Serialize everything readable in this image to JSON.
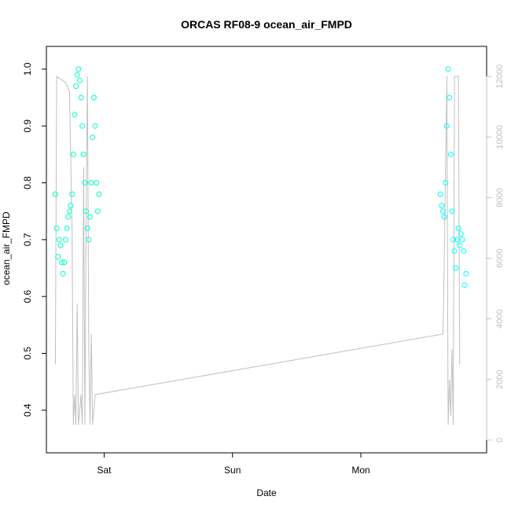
{
  "chart_data": {
    "type": "scatter",
    "title": "ORCAS RF08-9 ocean_air_FMPD",
    "xlabel": "Date",
    "ylabel": "ocean_air_FMPD",
    "x_tick_labels": [
      "Sat",
      "Sun",
      "Mon"
    ],
    "x_tick_positions": [
      1.0,
      2.0,
      3.0
    ],
    "xlim": [
      0.55,
      3.98
    ],
    "ylim": [
      0.325,
      1.04
    ],
    "y_ticks": [
      0.4,
      0.5,
      0.6,
      0.7,
      0.8,
      0.9,
      1.0
    ],
    "y_tick_labels": [
      "0.4",
      "0.5",
      "0.6",
      "0.7",
      "0.8",
      "0.9",
      "1.0"
    ],
    "y2_ticks": [
      0,
      2000,
      4000,
      6000,
      8000,
      10000,
      12000
    ],
    "y2_tick_labels": [
      "0",
      "2000",
      "4000",
      "6000",
      "8000",
      "10000",
      "12000"
    ],
    "y2lim": [
      -420,
      12990
    ],
    "colors": {
      "series_1": "#00ffc8",
      "series_2": "#00ffff",
      "altitude_line": "#c0c0c0"
    },
    "series": [
      {
        "segment": "first",
        "x_range": [
          0.62,
          0.96
        ],
        "y_pattern": [
          [
            0.62,
            0.78
          ],
          [
            0.63,
            0.72
          ],
          [
            0.64,
            0.67
          ],
          [
            0.65,
            0.7
          ],
          [
            0.66,
            0.69
          ],
          [
            0.67,
            0.66
          ],
          [
            0.68,
            0.64
          ],
          [
            0.69,
            0.66
          ],
          [
            0.7,
            0.7
          ],
          [
            0.71,
            0.72
          ],
          [
            0.72,
            0.74
          ],
          [
            0.73,
            0.75
          ],
          [
            0.74,
            0.76
          ],
          [
            0.75,
            0.78
          ],
          [
            0.76,
            0.85
          ],
          [
            0.77,
            0.92
          ],
          [
            0.78,
            0.97
          ],
          [
            0.79,
            0.99
          ],
          [
            0.8,
            1.0
          ],
          [
            0.81,
            0.98
          ],
          [
            0.82,
            0.95
          ],
          [
            0.83,
            0.9
          ],
          [
            0.84,
            0.85
          ],
          [
            0.85,
            0.8
          ],
          [
            0.86,
            0.75
          ],
          [
            0.87,
            0.72
          ],
          [
            0.88,
            0.7
          ],
          [
            0.89,
            0.74
          ],
          [
            0.9,
            0.8
          ],
          [
            0.91,
            0.88
          ],
          [
            0.92,
            0.95
          ],
          [
            0.93,
            0.9
          ],
          [
            0.94,
            0.8
          ],
          [
            0.95,
            0.75
          ],
          [
            0.96,
            0.78
          ]
        ]
      },
      {
        "segment": "second",
        "x_range": [
          3.62,
          3.82
        ],
        "y_pattern": [
          [
            3.62,
            0.78
          ],
          [
            3.63,
            0.76
          ],
          [
            3.64,
            0.75
          ],
          [
            3.65,
            0.74
          ],
          [
            3.66,
            0.8
          ],
          [
            3.67,
            0.9
          ],
          [
            3.68,
            1.0
          ],
          [
            3.69,
            0.95
          ],
          [
            3.7,
            0.85
          ],
          [
            3.71,
            0.75
          ],
          [
            3.72,
            0.7
          ],
          [
            3.73,
            0.68
          ],
          [
            3.74,
            0.65
          ],
          [
            3.75,
            0.7
          ],
          [
            3.76,
            0.72
          ],
          [
            3.77,
            0.69
          ],
          [
            3.78,
            0.71
          ],
          [
            3.79,
            0.7
          ],
          [
            3.8,
            0.68
          ],
          [
            3.81,
            0.62
          ],
          [
            3.82,
            0.64
          ]
        ]
      }
    ],
    "altitude_line": [
      [
        0.62,
        2500
      ],
      [
        0.63,
        12000
      ],
      [
        0.7,
        11800
      ],
      [
        0.73,
        11500
      ],
      [
        0.75,
        7000
      ],
      [
        0.76,
        500
      ],
      [
        0.77,
        1500
      ],
      [
        0.78,
        500
      ],
      [
        0.79,
        4500
      ],
      [
        0.8,
        500
      ],
      [
        0.82,
        1500
      ],
      [
        0.83,
        500
      ],
      [
        0.84,
        9000
      ],
      [
        0.85,
        500
      ],
      [
        0.86,
        7500
      ],
      [
        0.87,
        12000
      ],
      [
        0.88,
        3000
      ],
      [
        0.89,
        500
      ],
      [
        0.9,
        3500
      ],
      [
        0.91,
        500
      ],
      [
        0.93,
        1500
      ],
      [
        3.64,
        3500
      ],
      [
        3.65,
        6000
      ],
      [
        3.66,
        9000
      ],
      [
        3.67,
        12000
      ],
      [
        3.68,
        500
      ],
      [
        3.69,
        2000
      ],
      [
        3.7,
        800
      ],
      [
        3.71,
        3000
      ],
      [
        3.72,
        500
      ],
      [
        3.73,
        12000
      ],
      [
        3.76,
        12000
      ],
      [
        3.77,
        2500
      ]
    ]
  }
}
